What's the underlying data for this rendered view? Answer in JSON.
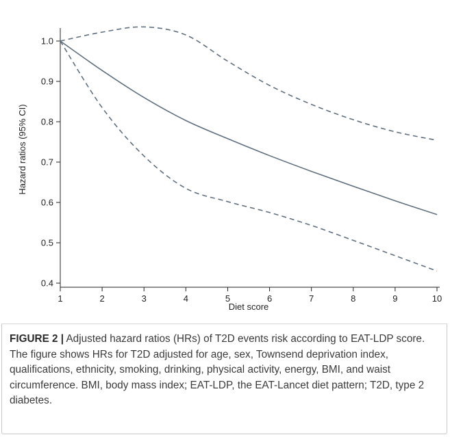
{
  "chart_data": {
    "type": "line",
    "xlabel": "Diet score",
    "ylabel": "Hazard ratios (95% CI)",
    "xlim": [
      1,
      10
    ],
    "ylim": [
      0.4,
      1.05
    ],
    "x_ticks": [
      1,
      2,
      3,
      4,
      5,
      6,
      7,
      8,
      9,
      10
    ],
    "y_ticks": [
      "0.4",
      "0.5",
      "0.6",
      "0.7",
      "0.8",
      "0.9",
      "1.0"
    ],
    "x": [
      1,
      2,
      3,
      4,
      5,
      6,
      7,
      8,
      9,
      10
    ],
    "series": [
      {
        "role": "estimate",
        "style": "solid",
        "values": [
          1.0,
          0.927,
          0.86,
          0.803,
          0.758,
          0.716,
          0.677,
          0.64,
          0.604,
          0.57
        ]
      },
      {
        "role": "upper-ci",
        "style": "dashed",
        "values": [
          1.0,
          1.022,
          1.035,
          1.015,
          0.95,
          0.89,
          0.843,
          0.805,
          0.775,
          0.754
        ]
      },
      {
        "role": "lower-ci",
        "style": "dashed",
        "values": [
          1.0,
          0.835,
          0.715,
          0.635,
          0.602,
          0.575,
          0.543,
          0.506,
          0.468,
          0.43
        ]
      }
    ],
    "grid": false,
    "line_color": "#5f6f7e"
  },
  "caption": {
    "label": "FIGURE 2 |",
    "text": " Adjusted hazard ratios (HRs) of T2D events risk according to EAT-LDP score. The figure shows HRs for T2D adjusted for age, sex, Townsend deprivation index, qualifications, ethnicity, smoking, drinking, physical activity, energy, BMI, and waist circumference. BMI, body mass index; EAT-LDP, the EAT-Lancet diet pattern; T2D, type 2 diabetes."
  }
}
